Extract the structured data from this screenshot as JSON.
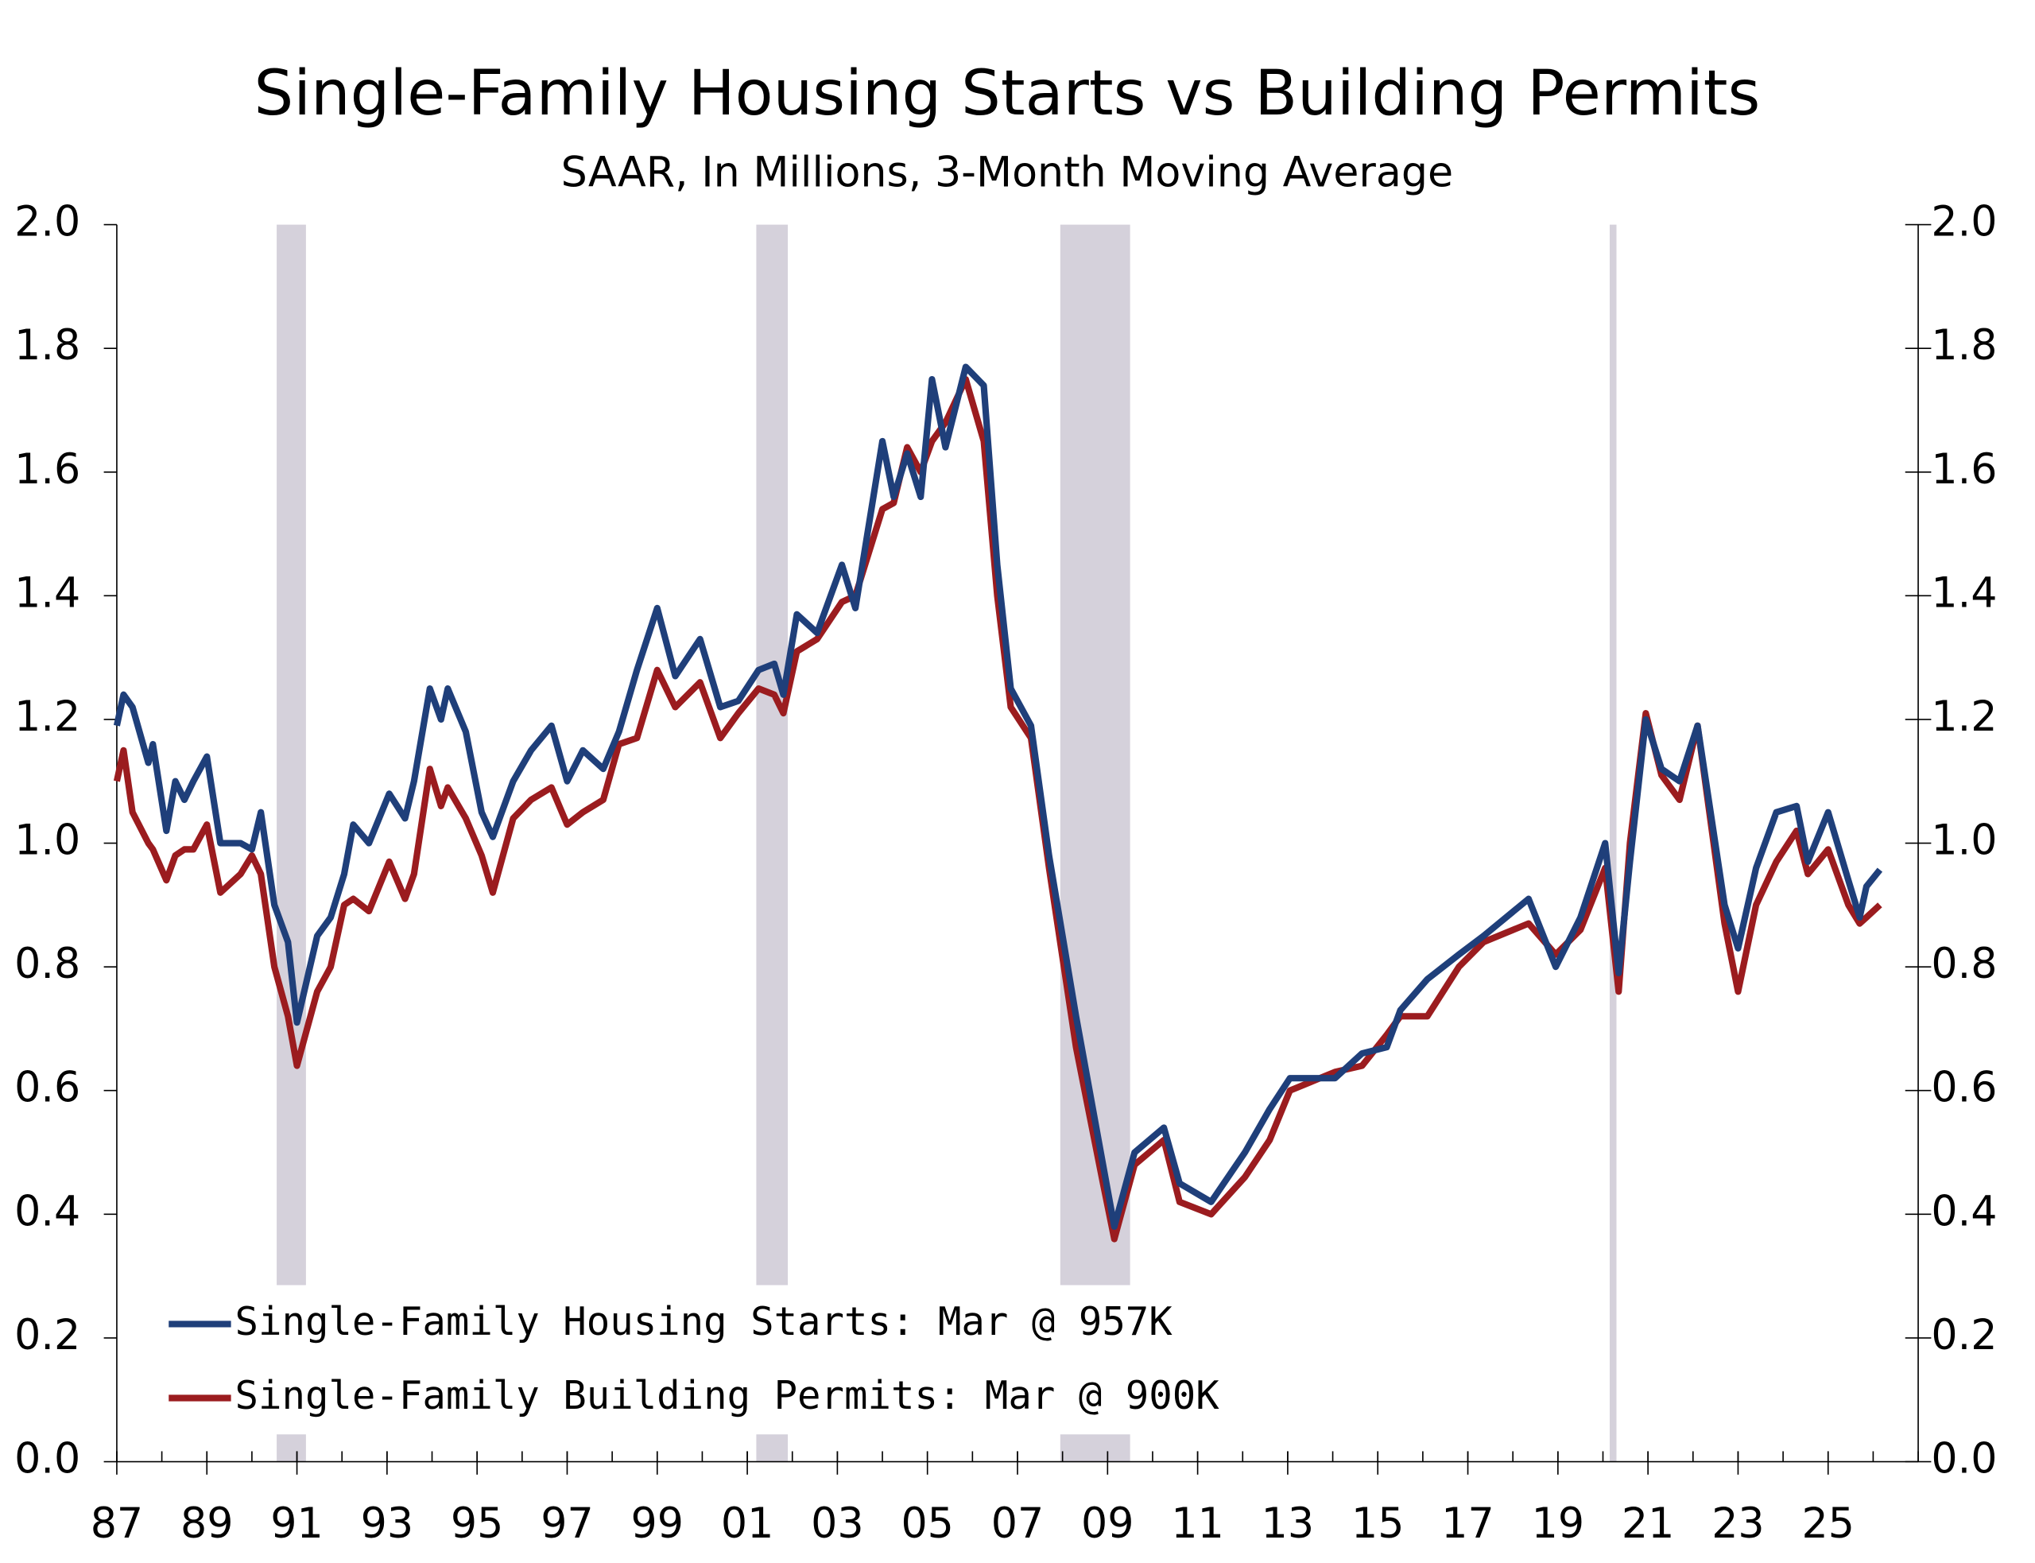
{
  "chart_data": {
    "type": "line",
    "title": "Single-Family Housing Starts vs Building Permits",
    "subtitle": "SAAR, In Millions, 3-Month Moving Average",
    "x": [
      1987.0,
      1987.15,
      1987.35,
      1987.7,
      1987.8,
      1988.1,
      1988.3,
      1988.5,
      1988.7,
      1989.0,
      1989.3,
      1989.75,
      1990.0,
      1990.2,
      1990.5,
      1990.8,
      1991.0,
      1991.45,
      1991.75,
      1992.05,
      1992.25,
      1992.6,
      1993.05,
      1993.4,
      1993.6,
      1993.95,
      1994.2,
      1994.35,
      1994.75,
      1995.1,
      1995.35,
      1995.8,
      1996.2,
      1996.65,
      1997.0,
      1997.35,
      1997.8,
      1998.15,
      1998.55,
      1999.0,
      1999.4,
      1999.95,
      2000.4,
      2000.8,
      2001.25,
      2001.6,
      2001.8,
      2002.1,
      2002.55,
      2003.1,
      2003.4,
      2004.0,
      2004.25,
      2004.55,
      2004.85,
      2005.1,
      2005.4,
      2005.85,
      2006.25,
      2006.55,
      2006.85,
      2007.3,
      2007.7,
      2008.3,
      2008.9,
      2009.15,
      2009.6,
      2010.25,
      2010.6,
      2011.3,
      2012.05,
      2012.6,
      2013.05,
      2014.05,
      2014.65,
      2015.2,
      2015.5,
      2016.1,
      2016.8,
      2017.35,
      2018.35,
      2018.95,
      2019.5,
      2020.05,
      2020.35,
      2020.6,
      2020.95,
      2021.3,
      2021.7,
      2022.1,
      2022.7,
      2023.0,
      2023.4,
      2023.85,
      2024.3,
      2024.55,
      2025.0,
      2025.45,
      2025.7,
      2025.85,
      2026.15
    ],
    "series": [
      {
        "name": "Single-Family Housing Starts: Mar @ 957K",
        "color": "#1f3f7a",
        "values": [
          1.19,
          1.24,
          1.22,
          1.13,
          1.16,
          1.02,
          1.1,
          1.07,
          1.1,
          1.14,
          1.0,
          1.0,
          0.99,
          1.05,
          0.9,
          0.84,
          0.71,
          0.85,
          0.88,
          0.95,
          1.03,
          1.0,
          1.08,
          1.04,
          1.1,
          1.25,
          1.2,
          1.25,
          1.18,
          1.05,
          1.01,
          1.1,
          1.15,
          1.19,
          1.1,
          1.15,
          1.12,
          1.18,
          1.28,
          1.38,
          1.27,
          1.33,
          1.22,
          1.23,
          1.28,
          1.29,
          1.24,
          1.37,
          1.34,
          1.45,
          1.38,
          1.65,
          1.56,
          1.63,
          1.56,
          1.75,
          1.64,
          1.77,
          1.74,
          1.45,
          1.25,
          1.19,
          0.98,
          0.72,
          0.48,
          0.38,
          0.5,
          0.54,
          0.45,
          0.42,
          0.5,
          0.57,
          0.62,
          0.62,
          0.66,
          0.67,
          0.73,
          0.78,
          0.82,
          0.85,
          0.91,
          0.8,
          0.88,
          1.0,
          0.79,
          0.97,
          1.2,
          1.12,
          1.1,
          1.19,
          0.9,
          0.83,
          0.96,
          1.05,
          1.06,
          0.97,
          1.05,
          0.94,
          0.88,
          0.93,
          0.957
        ]
      },
      {
        "name": "Single-Family Building Permits: Mar @ 900K",
        "color": "#9b1c1f",
        "values": [
          1.1,
          1.15,
          1.05,
          1.0,
          0.99,
          0.94,
          0.98,
          0.99,
          0.99,
          1.03,
          0.92,
          0.95,
          0.98,
          0.95,
          0.8,
          0.72,
          0.64,
          0.76,
          0.8,
          0.9,
          0.91,
          0.89,
          0.97,
          0.91,
          0.95,
          1.12,
          1.06,
          1.09,
          1.04,
          0.98,
          0.92,
          1.04,
          1.07,
          1.09,
          1.03,
          1.05,
          1.07,
          1.16,
          1.17,
          1.28,
          1.22,
          1.26,
          1.17,
          1.21,
          1.25,
          1.24,
          1.21,
          1.31,
          1.33,
          1.39,
          1.4,
          1.54,
          1.55,
          1.64,
          1.6,
          1.65,
          1.68,
          1.75,
          1.65,
          1.4,
          1.22,
          1.17,
          0.96,
          0.67,
          0.45,
          0.36,
          0.48,
          0.52,
          0.42,
          0.4,
          0.46,
          0.52,
          0.6,
          0.63,
          0.64,
          0.69,
          0.72,
          0.72,
          0.8,
          0.84,
          0.87,
          0.82,
          0.86,
          0.96,
          0.76,
          1.0,
          1.21,
          1.11,
          1.07,
          1.19,
          0.87,
          0.76,
          0.9,
          0.97,
          1.02,
          0.95,
          0.99,
          0.9,
          0.87,
          0.88,
          0.9
        ]
      }
    ],
    "shaded_periods": [
      [
        1990.55,
        1991.2
      ],
      [
        2001.2,
        2001.9
      ],
      [
        2007.95,
        2009.5
      ],
      [
        2020.15,
        2020.3
      ]
    ],
    "shade_color": "#d5d1db",
    "xlim": [
      1987,
      2027
    ],
    "xticks": [
      {
        "value": 1987,
        "label": "87"
      },
      {
        "value": 1989,
        "label": "89"
      },
      {
        "value": 1991,
        "label": "91"
      },
      {
        "value": 1993,
        "label": "93"
      },
      {
        "value": 1995,
        "label": "95"
      },
      {
        "value": 1997,
        "label": "97"
      },
      {
        "value": 1999,
        "label": "99"
      },
      {
        "value": 2001,
        "label": "01"
      },
      {
        "value": 2003,
        "label": "03"
      },
      {
        "value": 2005,
        "label": "05"
      },
      {
        "value": 2007,
        "label": "07"
      },
      {
        "value": 2009,
        "label": "09"
      },
      {
        "value": 2011,
        "label": "11"
      },
      {
        "value": 2013,
        "label": "13"
      },
      {
        "value": 2015,
        "label": "15"
      },
      {
        "value": 2017,
        "label": "17"
      },
      {
        "value": 2019,
        "label": "19"
      },
      {
        "value": 2021,
        "label": "21"
      },
      {
        "value": 2023,
        "label": "23"
      },
      {
        "value": 2025,
        "label": "25"
      }
    ],
    "ylim": [
      0,
      2
    ],
    "yticks": [
      {
        "value": 0,
        "label": "0.0"
      },
      0.2,
      0.4,
      0.6,
      0.8,
      {
        "value": 1,
        "label": "1.0"
      },
      1.2,
      1.4,
      1.6,
      1.8,
      {
        "value": 2,
        "label": "2.0"
      }
    ],
    "y2lim": [
      0,
      2
    ],
    "y2ticks": [
      {
        "value": 0,
        "label": "0.0"
      },
      0.2,
      0.4,
      0.6,
      0.8,
      {
        "value": 1,
        "label": "1.0"
      },
      1.2,
      1.4,
      1.6,
      1.8,
      {
        "value": 2,
        "label": "2.0"
      }
    ],
    "legend": "lower left"
  }
}
